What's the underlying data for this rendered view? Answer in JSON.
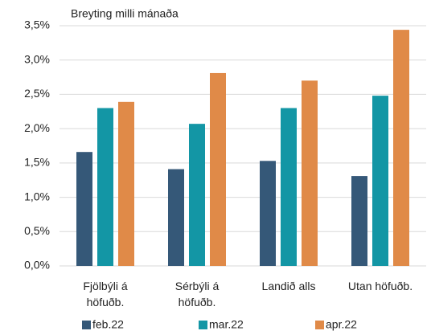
{
  "chart_data": {
    "type": "bar",
    "title": "Breyting milli mánaða",
    "categories": [
      "Fjölbýli á höfuðb.",
      "Sérbýli á höfuðb.",
      "Landið alls",
      "Utan höfuðb."
    ],
    "series": [
      {
        "name": "feb.22",
        "color": "#355878",
        "values": [
          1.66,
          1.41,
          1.53,
          1.31
        ]
      },
      {
        "name": "mar.22",
        "color": "#1396a5",
        "values": [
          2.3,
          2.07,
          2.3,
          2.48
        ]
      },
      {
        "name": "apr.22",
        "color": "#e08a48",
        "values": [
          2.39,
          2.81,
          2.7,
          3.44
        ]
      }
    ],
    "ylim": [
      0,
      3.5
    ],
    "yticks": [
      {
        "value": 0,
        "label": "0,0%"
      },
      {
        "value": 0.5,
        "label": "0,5%"
      },
      {
        "value": 1,
        "label": "1,0%"
      },
      {
        "value": 1.5,
        "label": "1,5%"
      },
      {
        "value": 2,
        "label": "2,0%"
      },
      {
        "value": 2.5,
        "label": "2,5%"
      },
      {
        "value": 3,
        "label": "3,0%"
      },
      {
        "value": 3.5,
        "label": "3,5%"
      }
    ],
    "grid": true,
    "legend": "bottom"
  }
}
